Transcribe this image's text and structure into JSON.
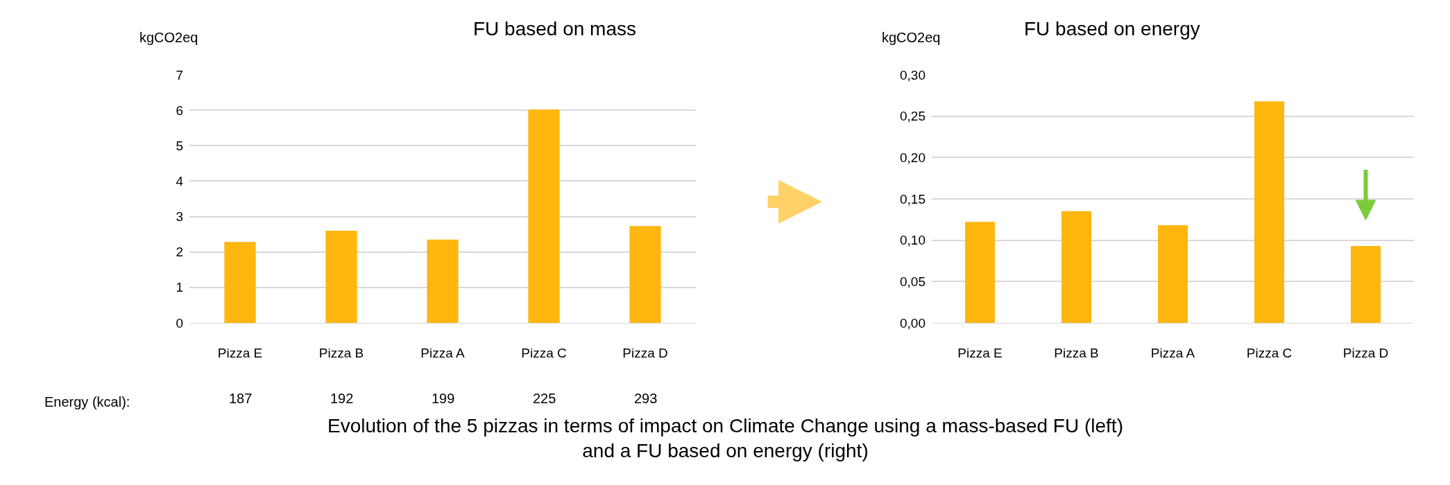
{
  "chart_data": [
    {
      "type": "bar",
      "title": "FU based on mass",
      "ylabel": "kgCO2eq",
      "categories": [
        "Pizza E",
        "Pizza B",
        "Pizza A",
        "Pizza C",
        "Pizza D"
      ],
      "values": [
        2.28,
        2.6,
        2.35,
        6.02,
        2.73
      ],
      "color": "#ffb70f",
      "ylim": [
        0,
        7
      ],
      "yticks": [
        0,
        1,
        2,
        3,
        4,
        5,
        6,
        7
      ],
      "grid": "y",
      "annotations": [
        "Energy (kcal):",
        "187",
        "192",
        "199",
        "225",
        "293",
        "Evolution of the 5 pizzas in terms of impact on Climate Change using a mass-based FU (left)\nand a FU based on energy (right)"
      ]
    },
    {
      "type": "bar",
      "title": "FU based on energy",
      "ylabel": "kgCO2eq",
      "categories": [
        "Pizza E",
        "Pizza B",
        "Pizza A",
        "Pizza C",
        "Pizza D"
      ],
      "values": [
        0.122,
        0.135,
        0.118,
        0.268,
        0.093
      ],
      "color": "#ffb70f",
      "ylim": [
        0,
        0.3
      ],
      "yticks": [
        {
          "value": 0,
          "label": "0,00"
        },
        {
          "value": 0.05,
          "label": "0,05"
        },
        {
          "value": 0.1,
          "label": "0,10"
        },
        {
          "value": 0.15,
          "label": "0,15"
        },
        {
          "value": 0.2,
          "label": "0,20"
        },
        {
          "value": 0.25,
          "label": "0,25"
        },
        {
          "value": 0.3,
          "label": "0,30"
        }
      ],
      "grid": "y"
    }
  ]
}
